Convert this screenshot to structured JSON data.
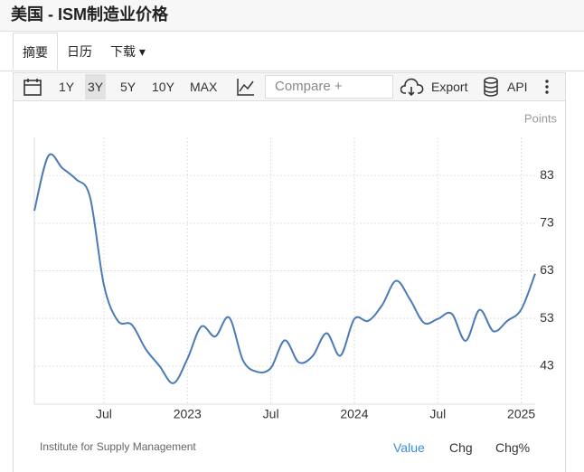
{
  "header": {
    "title": "美国 - ISM制造业价格"
  },
  "tabs": [
    "摘要",
    "日历",
    "下载"
  ],
  "toolbar": {
    "ranges": [
      "1Y",
      "3Y",
      "5Y",
      "10Y",
      "MAX"
    ],
    "compare": "Compare +",
    "export": "Export",
    "api": "API"
  },
  "chart_data": {
    "type": "line",
    "y_label": "Points",
    "x": [
      "2022-02",
      "2022-03",
      "2022-04",
      "2022-05",
      "2022-06",
      "2022-07",
      "2022-08",
      "2022-09",
      "2022-10",
      "2022-11",
      "2022-12",
      "2023-01",
      "2023-02",
      "2023-03",
      "2023-04",
      "2023-05",
      "2023-06",
      "2023-07",
      "2023-08",
      "2023-09",
      "2023-10",
      "2023-11",
      "2023-12",
      "2024-01",
      "2024-02",
      "2024-03",
      "2024-04",
      "2024-05",
      "2024-06",
      "2024-07",
      "2024-08",
      "2024-09",
      "2024-10",
      "2024-11",
      "2024-12",
      "2025-01",
      "2025-02"
    ],
    "series": [
      {
        "name": "Value",
        "color": "#4a7bb7",
        "values": [
          75.6,
          87.1,
          84.6,
          82.2,
          78.5,
          60.0,
          52.5,
          51.7,
          46.6,
          43.0,
          39.4,
          44.5,
          51.3,
          49.2,
          53.2,
          44.2,
          41.8,
          42.6,
          48.4,
          43.8,
          45.1,
          49.9,
          45.2,
          52.9,
          52.5,
          55.8,
          60.9,
          57.0,
          52.1,
          52.9,
          54.0,
          48.3,
          54.8,
          50.3,
          52.5,
          54.9,
          62.4
        ]
      }
    ],
    "xticks": [
      {
        "value": "2022-07",
        "label": "Jul"
      },
      {
        "value": "2023-01",
        "label": "2023"
      },
      {
        "value": "2023-07",
        "label": "Jul"
      },
      {
        "value": "2024-01",
        "label": "2024"
      },
      {
        "value": "2024-07",
        "label": "Jul"
      },
      {
        "value": "2025-01",
        "label": "2025"
      }
    ],
    "ylim": [
      35,
      91
    ],
    "yticks": [
      43,
      53,
      63,
      73,
      83
    ],
    "grid": true
  },
  "footer": {
    "source": "Institute for Supply Management",
    "modes": [
      "Value",
      "Chg",
      "Chg%"
    ]
  }
}
